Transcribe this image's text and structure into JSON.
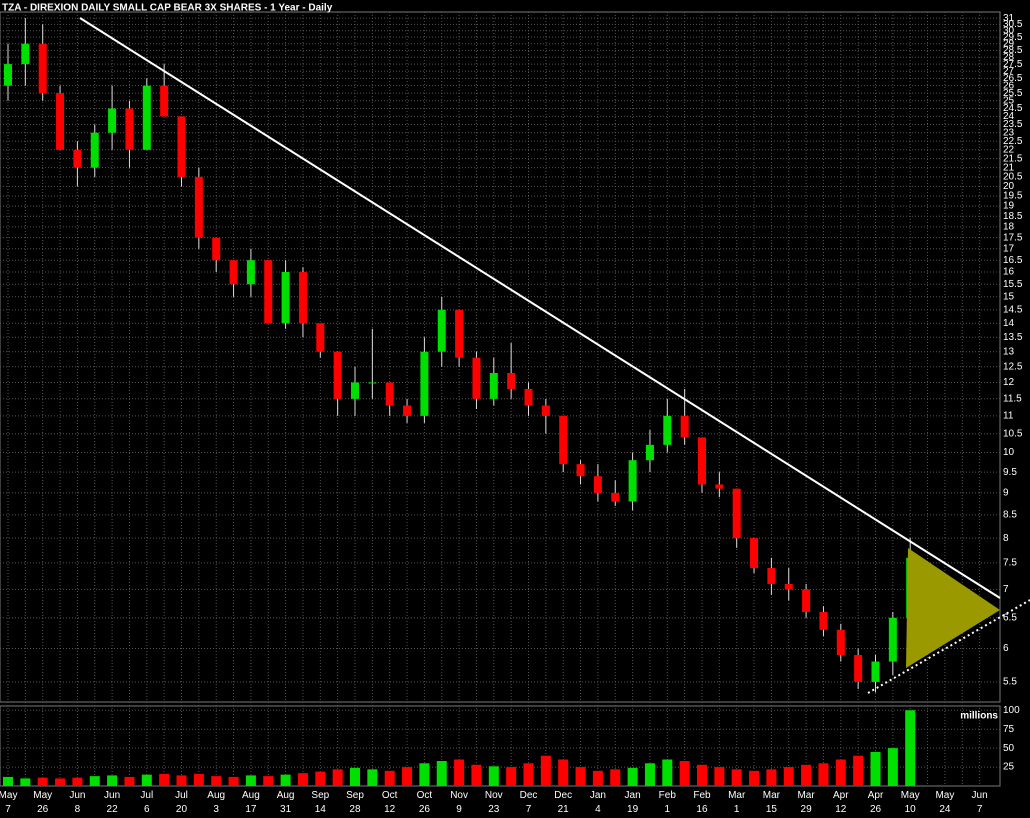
{
  "chart_data": [
    {
      "type": "candlestick",
      "title": "TZA - DIREXION DAILY SMALL CAP BEAR 3X SHARES - 1 Year - Daily",
      "categories": [
        "May 7",
        null,
        "May 26",
        null,
        "Jun 8",
        null,
        "Jun 22",
        null,
        "Jul 6",
        null,
        "Jul 20",
        null,
        "Aug 3",
        null,
        "Aug 17",
        null,
        "Aug 31",
        null,
        "Sep 14",
        null,
        "Sep 28",
        null,
        "Oct 12",
        null,
        "Oct 26",
        null,
        "Nov 9",
        null,
        "Nov 23",
        null,
        "Dec 7",
        null,
        "Dec 21",
        null,
        "Jan 4",
        null,
        "Jan 19",
        null,
        "Feb 1",
        null,
        "Feb 16",
        null,
        "Mar 1",
        null,
        "Mar 15",
        null,
        "Mar 29",
        null,
        "Apr 12",
        null,
        "Apr 26",
        null,
        "May 10",
        null,
        "May 24",
        null,
        "Jun 7"
      ],
      "open": [
        26,
        27.5,
        29,
        25.5,
        22,
        21,
        23,
        24.5,
        22,
        26,
        24,
        20.5,
        17.5,
        16.5,
        15.5,
        16.5,
        14,
        16,
        14,
        13,
        11.5,
        12,
        12,
        11.3,
        11,
        13,
        14.5,
        12.8,
        11.5,
        12.3,
        11.8,
        11.3,
        11,
        9.7,
        9.4,
        9,
        8.8,
        9.8,
        10.2,
        11,
        10.4,
        9.2,
        9.1,
        8,
        7.4,
        7.1,
        7,
        6.6,
        6.3,
        5.9,
        5.5,
        5.8,
        6.5,
        null,
        null,
        null,
        null
      ],
      "high": [
        29,
        31,
        30.5,
        26,
        22.5,
        23.5,
        26,
        25,
        26.5,
        27.5,
        24,
        21,
        17.5,
        16.5,
        17,
        16.5,
        16.5,
        16.2,
        14,
        13,
        12.5,
        13.8,
        12,
        11.5,
        13.5,
        15,
        14.5,
        13,
        12.8,
        13.3,
        12,
        11.5,
        11,
        9.8,
        9.7,
        9.3,
        10,
        10.6,
        11.5,
        11.8,
        10.4,
        9.5,
        9.1,
        8,
        7.6,
        7.4,
        7.1,
        6.7,
        6.4,
        6,
        5.9,
        6.6,
        8,
        null,
        null,
        null,
        null
      ],
      "low": [
        25,
        26,
        25,
        22,
        20,
        20.5,
        22,
        21,
        22,
        24,
        20,
        17,
        16,
        15,
        15,
        14,
        13.8,
        13.5,
        12.8,
        11,
        11,
        11.5,
        11,
        10.8,
        10.8,
        12.5,
        12.5,
        11.2,
        11.3,
        11.5,
        11,
        10.5,
        9.5,
        9.2,
        8.8,
        8.7,
        8.6,
        9.5,
        10,
        10.2,
        9,
        8.9,
        7.8,
        7.3,
        6.9,
        6.8,
        6.5,
        6.2,
        5.8,
        5.4,
        5.35,
        5.6,
        6.4,
        null,
        null,
        null,
        null
      ],
      "close": [
        27.5,
        29,
        25.5,
        22,
        21,
        23,
        24.5,
        22,
        26,
        24,
        20.5,
        17.5,
        16.5,
        15.5,
        16.5,
        14,
        16,
        14,
        13,
        11.5,
        12,
        12,
        11.3,
        11,
        13,
        14.5,
        12.8,
        11.5,
        12.3,
        11.8,
        11.3,
        11,
        9.7,
        9.4,
        9,
        8.8,
        9.8,
        10.2,
        11,
        10.4,
        9.2,
        9.1,
        8,
        7.4,
        7.1,
        7,
        6.6,
        6.3,
        5.9,
        5.5,
        5.8,
        6.5,
        7.6,
        null,
        null,
        null,
        null
      ],
      "up_color": "#00e000",
      "down_color": "#ff0000",
      "log_scale": true,
      "grid": true,
      "ylim": [
        5.22,
        31.5
      ],
      "yticks": [
        5.5,
        6,
        6.5,
        7,
        7.5,
        8,
        8.5,
        9,
        9.5,
        10,
        10.5,
        11,
        11.5,
        12,
        12.5,
        13,
        13.5,
        14,
        14.5,
        15,
        15.5,
        16,
        16.5,
        17,
        17.5,
        18,
        18.5,
        19,
        19.5,
        20,
        20.5,
        21,
        21.5,
        22,
        22.5,
        23,
        23.5,
        24,
        24.5,
        25,
        25.5,
        26,
        26.5,
        27,
        27.5,
        28,
        28.5,
        29,
        29.5,
        30,
        30.5,
        31
      ]
    },
    {
      "type": "bar",
      "y_label": "millions",
      "values": [
        12,
        10,
        11,
        10,
        11,
        13,
        14,
        12,
        15,
        16,
        14,
        16,
        13,
        12,
        14,
        13,
        15,
        17,
        19,
        22,
        24,
        22,
        20,
        25,
        30,
        33,
        35,
        28,
        26,
        25,
        30,
        40,
        35,
        25,
        20,
        22,
        24,
        30,
        35,
        33,
        28,
        25,
        22,
        20,
        22,
        25,
        28,
        30,
        35,
        40,
        45,
        50,
        100,
        null,
        null,
        null,
        null
      ],
      "ylim": [
        0,
        103
      ],
      "yticks": [
        25,
        50,
        75,
        100
      ],
      "grid": true
    }
  ]
}
